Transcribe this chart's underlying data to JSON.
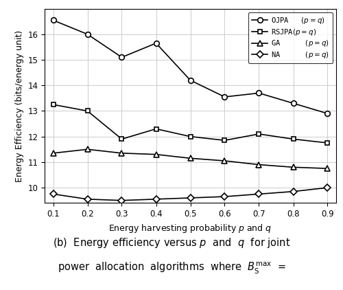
{
  "x": [
    0.1,
    0.2,
    0.3,
    0.4,
    0.5,
    0.6,
    0.7,
    0.8,
    0.9
  ],
  "OJPA": [
    16.55,
    16.0,
    15.1,
    15.65,
    14.2,
    13.55,
    13.7,
    13.3,
    12.9
  ],
  "RSJPA": [
    13.25,
    13.0,
    11.9,
    12.3,
    12.0,
    11.85,
    12.1,
    11.9,
    11.75
  ],
  "GA": [
    11.35,
    11.5,
    11.35,
    11.3,
    11.15,
    11.05,
    10.9,
    10.8,
    10.75
  ],
  "NA": [
    9.75,
    9.55,
    9.5,
    9.55,
    9.6,
    9.65,
    9.75,
    9.85,
    10.0
  ],
  "xlabel": "Energy harvesting probability $p$ and $q$",
  "ylabel": "Energy Efficiency (bits/energy unit)",
  "legend_labels": [
    "OJPA   $(p = q)$",
    "RSJPA$(p = q)$",
    "GA      $(p = q)$",
    "NA      $(p = q)$"
  ],
  "yticks": [
    10,
    11,
    12,
    13,
    14,
    15,
    16
  ],
  "xticks": [
    0.1,
    0.2,
    0.3,
    0.4,
    0.5,
    0.6,
    0.7,
    0.8,
    0.9
  ],
  "xlim": [
    0.075,
    0.925
  ],
  "ylim": [
    9.4,
    17.0
  ],
  "grid_color": "#cccccc",
  "line_color": "#000000",
  "fig_width": 5.0,
  "fig_height": 4.22,
  "caption_line1": "(b)  Energy efficiency versus $p$  and  $q$  for joint",
  "caption_line2": "power  allocation  algorithms  where  $B_{\\mathrm{S}}^{\\max}$  =",
  "caption_fontsize": 10.5
}
